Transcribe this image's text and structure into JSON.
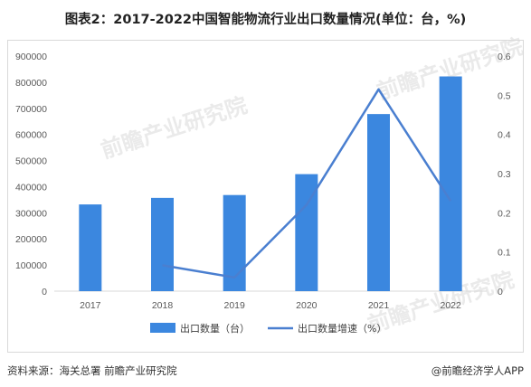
{
  "title": "图表2：2017-2022中国智能物流行业出口数量情况(单位：台，%)",
  "chart_data": {
    "type": "bar",
    "categories": [
      "2017",
      "2018",
      "2019",
      "2020",
      "2021",
      "2022"
    ],
    "series": [
      {
        "name": "出口数量（台）",
        "type": "bar",
        "axis": "left",
        "values": [
          332000,
          357000,
          368000,
          448000,
          678000,
          822000
        ]
      },
      {
        "name": "出口数量增速（%）",
        "type": "line",
        "axis": "right",
        "values": [
          null,
          0.066,
          0.035,
          0.22,
          0.515,
          0.23
        ]
      }
    ],
    "y_left": {
      "min": 0,
      "max": 900000,
      "step": 100000,
      "ticks": [
        "0",
        "100000",
        "200000",
        "300000",
        "400000",
        "500000",
        "600000",
        "700000",
        "800000",
        "900000"
      ]
    },
    "y_right": {
      "min": 0,
      "max": 0.6,
      "step": 0.1,
      "ticks": [
        "0",
        "0.1",
        "0.2",
        "0.3",
        "0.4",
        "0.5",
        "0.6"
      ]
    },
    "bar_color": "#3b87df",
    "line_color": "#4a7fd0",
    "grid": false,
    "legend_position": "bottom"
  },
  "watermark": "前瞻产业研究院",
  "footer": {
    "source": "资料来源：海关总署 前瞻产业研究院",
    "credit": "@前瞻经济学人APP"
  }
}
